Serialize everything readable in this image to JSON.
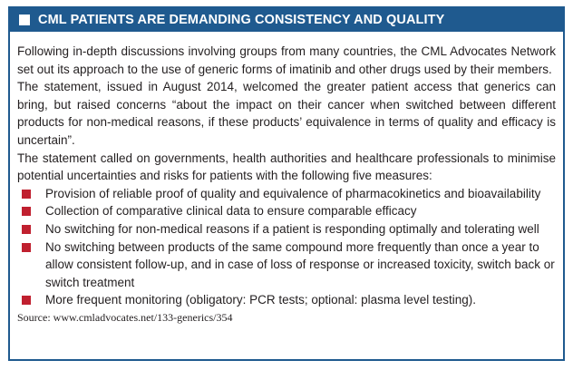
{
  "header": {
    "title": "CML PATIENTS ARE DEMANDING CONSISTENCY AND QUALITY",
    "color": "#1f5a8f"
  },
  "paragraphs": [
    "Following in-depth discussions involving groups from many countries, the CML Advocates Network set out its approach to the use of generic forms of imatinib and other drugs used by their members.",
    "The statement, issued in August 2014, welcomed the greater patient access that generics can bring, but raised concerns “about the impact on their cancer when switched between different products for non-medical reasons, if these products’ equivalence in terms of quality and efficacy is uncertain”.",
    "The statement called on governments, health authorities and healthcare professionals to minimise potential uncertainties and risks for patients with the following five measures:"
  ],
  "bullets": [
    "Provision of reliable proof of quality and equivalence of pharmacokinetics and bioavailability",
    "Collection of comparative clinical data to ensure comparable efficacy",
    "No switching for non-medical reasons if a patient is responding optimally and tolerating well",
    "No switching between products of the same compound more frequently than once a year to allow consistent follow-up, and in case of loss of response or increased toxicity, switch back or switch treatment",
    "More frequent monitoring (obligatory: PCR tests; optional: plasma level testing)."
  ],
  "bullet_color": "#c0202f",
  "source": "Source: www.cmladvocates.net/133-generics/354"
}
